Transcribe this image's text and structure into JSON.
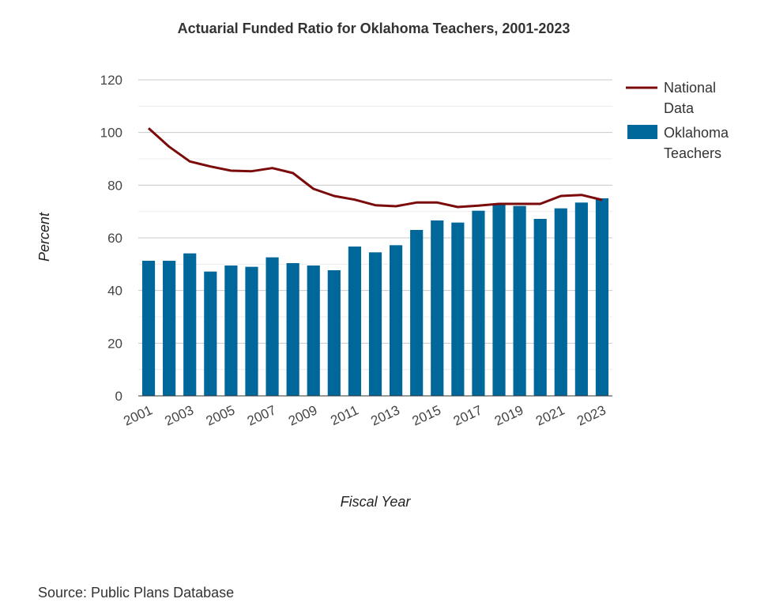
{
  "chart_data": {
    "type": "bar",
    "title": "Actuarial Funded Ratio for Oklahoma Teachers, 2001-2023",
    "xlabel": "Fiscal Year",
    "ylabel": "Percent",
    "ylim": [
      0,
      120
    ],
    "yticks": [
      0,
      20,
      40,
      60,
      80,
      100,
      120
    ],
    "grid": true,
    "legend_position": "right",
    "categories": [
      "2001",
      "2002",
      "2003",
      "2004",
      "2005",
      "2006",
      "2007",
      "2008",
      "2009",
      "2010",
      "2011",
      "2012",
      "2013",
      "2014",
      "2015",
      "2016",
      "2017",
      "2018",
      "2019",
      "2020",
      "2021",
      "2022",
      "2023"
    ],
    "xtick_labels": [
      "2001",
      "2003",
      "2005",
      "2007",
      "2009",
      "2011",
      "2013",
      "2015",
      "2017",
      "2019",
      "2021",
      "2023"
    ],
    "series": [
      {
        "name": "Oklahoma Teachers",
        "kind": "bar",
        "color": "#00679a",
        "values": [
          51.3,
          51.3,
          54.1,
          47.2,
          49.5,
          49.0,
          52.6,
          50.4,
          49.5,
          47.7,
          56.7,
          54.5,
          57.2,
          63.0,
          66.6,
          65.8,
          70.3,
          72.6,
          72.1,
          67.2,
          71.2,
          73.4,
          75.0
        ]
      },
      {
        "name": "National Data",
        "kind": "line",
        "color": "#7b0b0b",
        "values": [
          101.6,
          94.6,
          89.0,
          87.1,
          85.5,
          85.3,
          86.5,
          84.6,
          78.6,
          75.9,
          74.5,
          72.4,
          72.0,
          73.4,
          73.4,
          71.7,
          72.2,
          72.9,
          72.9,
          72.9,
          75.9,
          76.3,
          74.4
        ]
      }
    ],
    "source": "Source: Public Plans Database"
  }
}
